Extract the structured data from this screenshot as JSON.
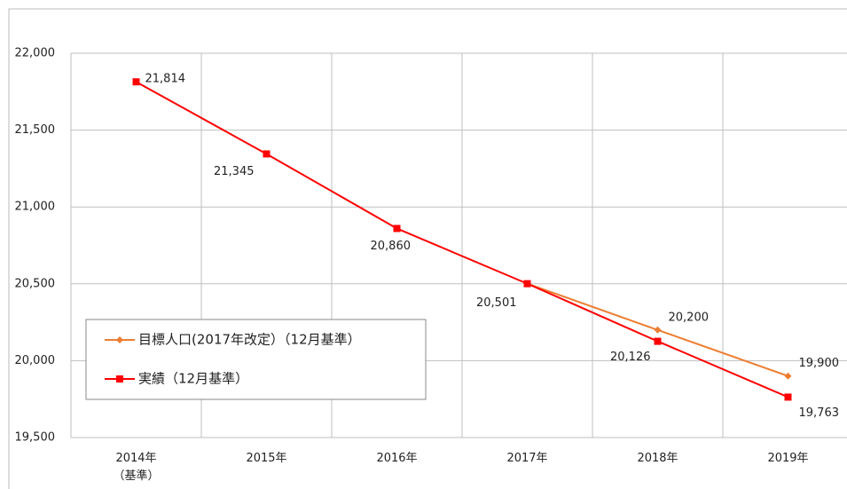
{
  "chart_data": {
    "type": "line",
    "categories": [
      "2014年\n（基準）",
      "2015年",
      "2016年",
      "2017年",
      "2018年",
      "2019年"
    ],
    "series": [
      {
        "name": "目標人口(2017年改定）（12月基準）",
        "color": "#ed7d31",
        "marker": "diamond",
        "values": [
          null,
          null,
          null,
          20501,
          20200,
          19900
        ],
        "value_labels": [
          null,
          null,
          null,
          null,
          "20,200",
          "19,900"
        ]
      },
      {
        "name": "実績（12月基準）",
        "color": "#ff0000",
        "marker": "square",
        "values": [
          21814,
          21345,
          20860,
          20501,
          20126,
          19763
        ],
        "value_labels": [
          "21,814",
          "21,345",
          "20,860",
          "20,501",
          "20,126",
          "19,763"
        ]
      }
    ],
    "ylim": [
      19500,
      22000
    ],
    "yticks": [
      {
        "value": 19500,
        "label": "19,500"
      },
      {
        "value": 20000,
        "label": "20,000"
      },
      {
        "value": 20500,
        "label": "20,500"
      },
      {
        "value": 21000,
        "label": "21,000"
      },
      {
        "value": 21500,
        "label": "21,500"
      },
      {
        "value": 22000,
        "label": "22,000"
      }
    ],
    "grid": true,
    "legend": "lower-left"
  }
}
